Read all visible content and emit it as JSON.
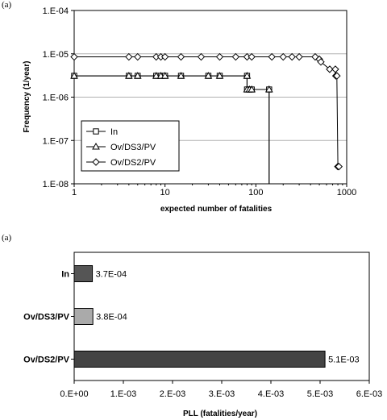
{
  "chart_data": [
    {
      "panel_label": "(a)",
      "type": "line",
      "xscale": "log",
      "yscale": "log",
      "xlim": [
        1,
        1000
      ],
      "ylim": [
        1e-08,
        0.0001
      ],
      "xticks": [
        "1",
        "10",
        "100",
        "1000"
      ],
      "yticks": [
        "1.E-08",
        "1.E-07",
        "1.E-06",
        "1.E-05",
        "1.E-04"
      ],
      "xlabel": "expected number of fatalities",
      "ylabel": "Frequency (1/year)",
      "grid": "horizontal",
      "legend_position": "bottom-left",
      "series": [
        {
          "name": "In",
          "marker": "square",
          "points": [
            [
              1,
              3.1e-06
            ],
            [
              4,
              3.1e-06
            ],
            [
              5,
              3.1e-06
            ],
            [
              8,
              3.1e-06
            ],
            [
              9,
              3.1e-06
            ],
            [
              10,
              3.1e-06
            ],
            [
              15,
              3.1e-06
            ],
            [
              30,
              3.1e-06
            ],
            [
              40,
              3.1e-06
            ],
            [
              80,
              3.1e-06
            ],
            [
              80,
              1.5e-06
            ],
            [
              85,
              1.5e-06
            ],
            [
              90,
              1.5e-06
            ],
            [
              140,
              1.5e-06
            ]
          ],
          "drop_x": 140
        },
        {
          "name": "Ov/DS3/PV",
          "marker": "triangle",
          "points": [
            [
              1,
              3.1e-06
            ],
            [
              4,
              3.1e-06
            ],
            [
              5,
              3.1e-06
            ],
            [
              8,
              3.1e-06
            ],
            [
              9,
              3.1e-06
            ],
            [
              10,
              3.1e-06
            ],
            [
              15,
              3.1e-06
            ],
            [
              30,
              3.1e-06
            ],
            [
              40,
              3.1e-06
            ],
            [
              80,
              3.1e-06
            ],
            [
              80,
              1.5e-06
            ],
            [
              85,
              1.5e-06
            ],
            [
              90,
              1.5e-06
            ],
            [
              140,
              1.5e-06
            ]
          ],
          "drop_x": 140
        },
        {
          "name": "Ov/DS2/PV",
          "marker": "diamond",
          "points": [
            [
              1,
              8.5e-06
            ],
            [
              4,
              8.5e-06
            ],
            [
              5,
              8.5e-06
            ],
            [
              8,
              8.5e-06
            ],
            [
              9,
              8.5e-06
            ],
            [
              10,
              8.5e-06
            ],
            [
              15,
              8.5e-06
            ],
            [
              25,
              8.5e-06
            ],
            [
              40,
              8.5e-06
            ],
            [
              60,
              8.5e-06
            ],
            [
              80,
              8.5e-06
            ],
            [
              90,
              8.5e-06
            ],
            [
              150,
              8.5e-06
            ],
            [
              200,
              8.5e-06
            ],
            [
              250,
              8.5e-06
            ],
            [
              300,
              8.5e-06
            ],
            [
              450,
              8.5e-06
            ],
            [
              500,
              7.5e-06
            ],
            [
              520,
              6.5e-06
            ],
            [
              650,
              4.4e-06
            ],
            [
              750,
              4.4e-06
            ],
            [
              760,
              3.1e-06
            ],
            [
              780,
              3.1e-06
            ],
            [
              800,
              2.5e-08
            ],
            [
              820,
              2.5e-08
            ]
          ]
        }
      ]
    },
    {
      "panel_label": "(a)",
      "type": "bar",
      "orientation": "horizontal",
      "categories": [
        "In",
        "Ov/DS3/PV",
        "Ov/DS2/PV"
      ],
      "values": [
        0.00037,
        0.00038,
        0.0051
      ],
      "value_labels": [
        "3.7E-04",
        "3.8E-04",
        "5.1E-03"
      ],
      "xlim": [
        0,
        0.006
      ],
      "xticks": [
        "0.E+00",
        "1.E-03",
        "2.E-03",
        "3.E-03",
        "4.E-03",
        "5.E-03",
        "6.E-03"
      ],
      "xlabel": "PLL (fatalities/year)",
      "colors": [
        "#555555",
        "#aaaaaa",
        "#444444"
      ]
    }
  ]
}
